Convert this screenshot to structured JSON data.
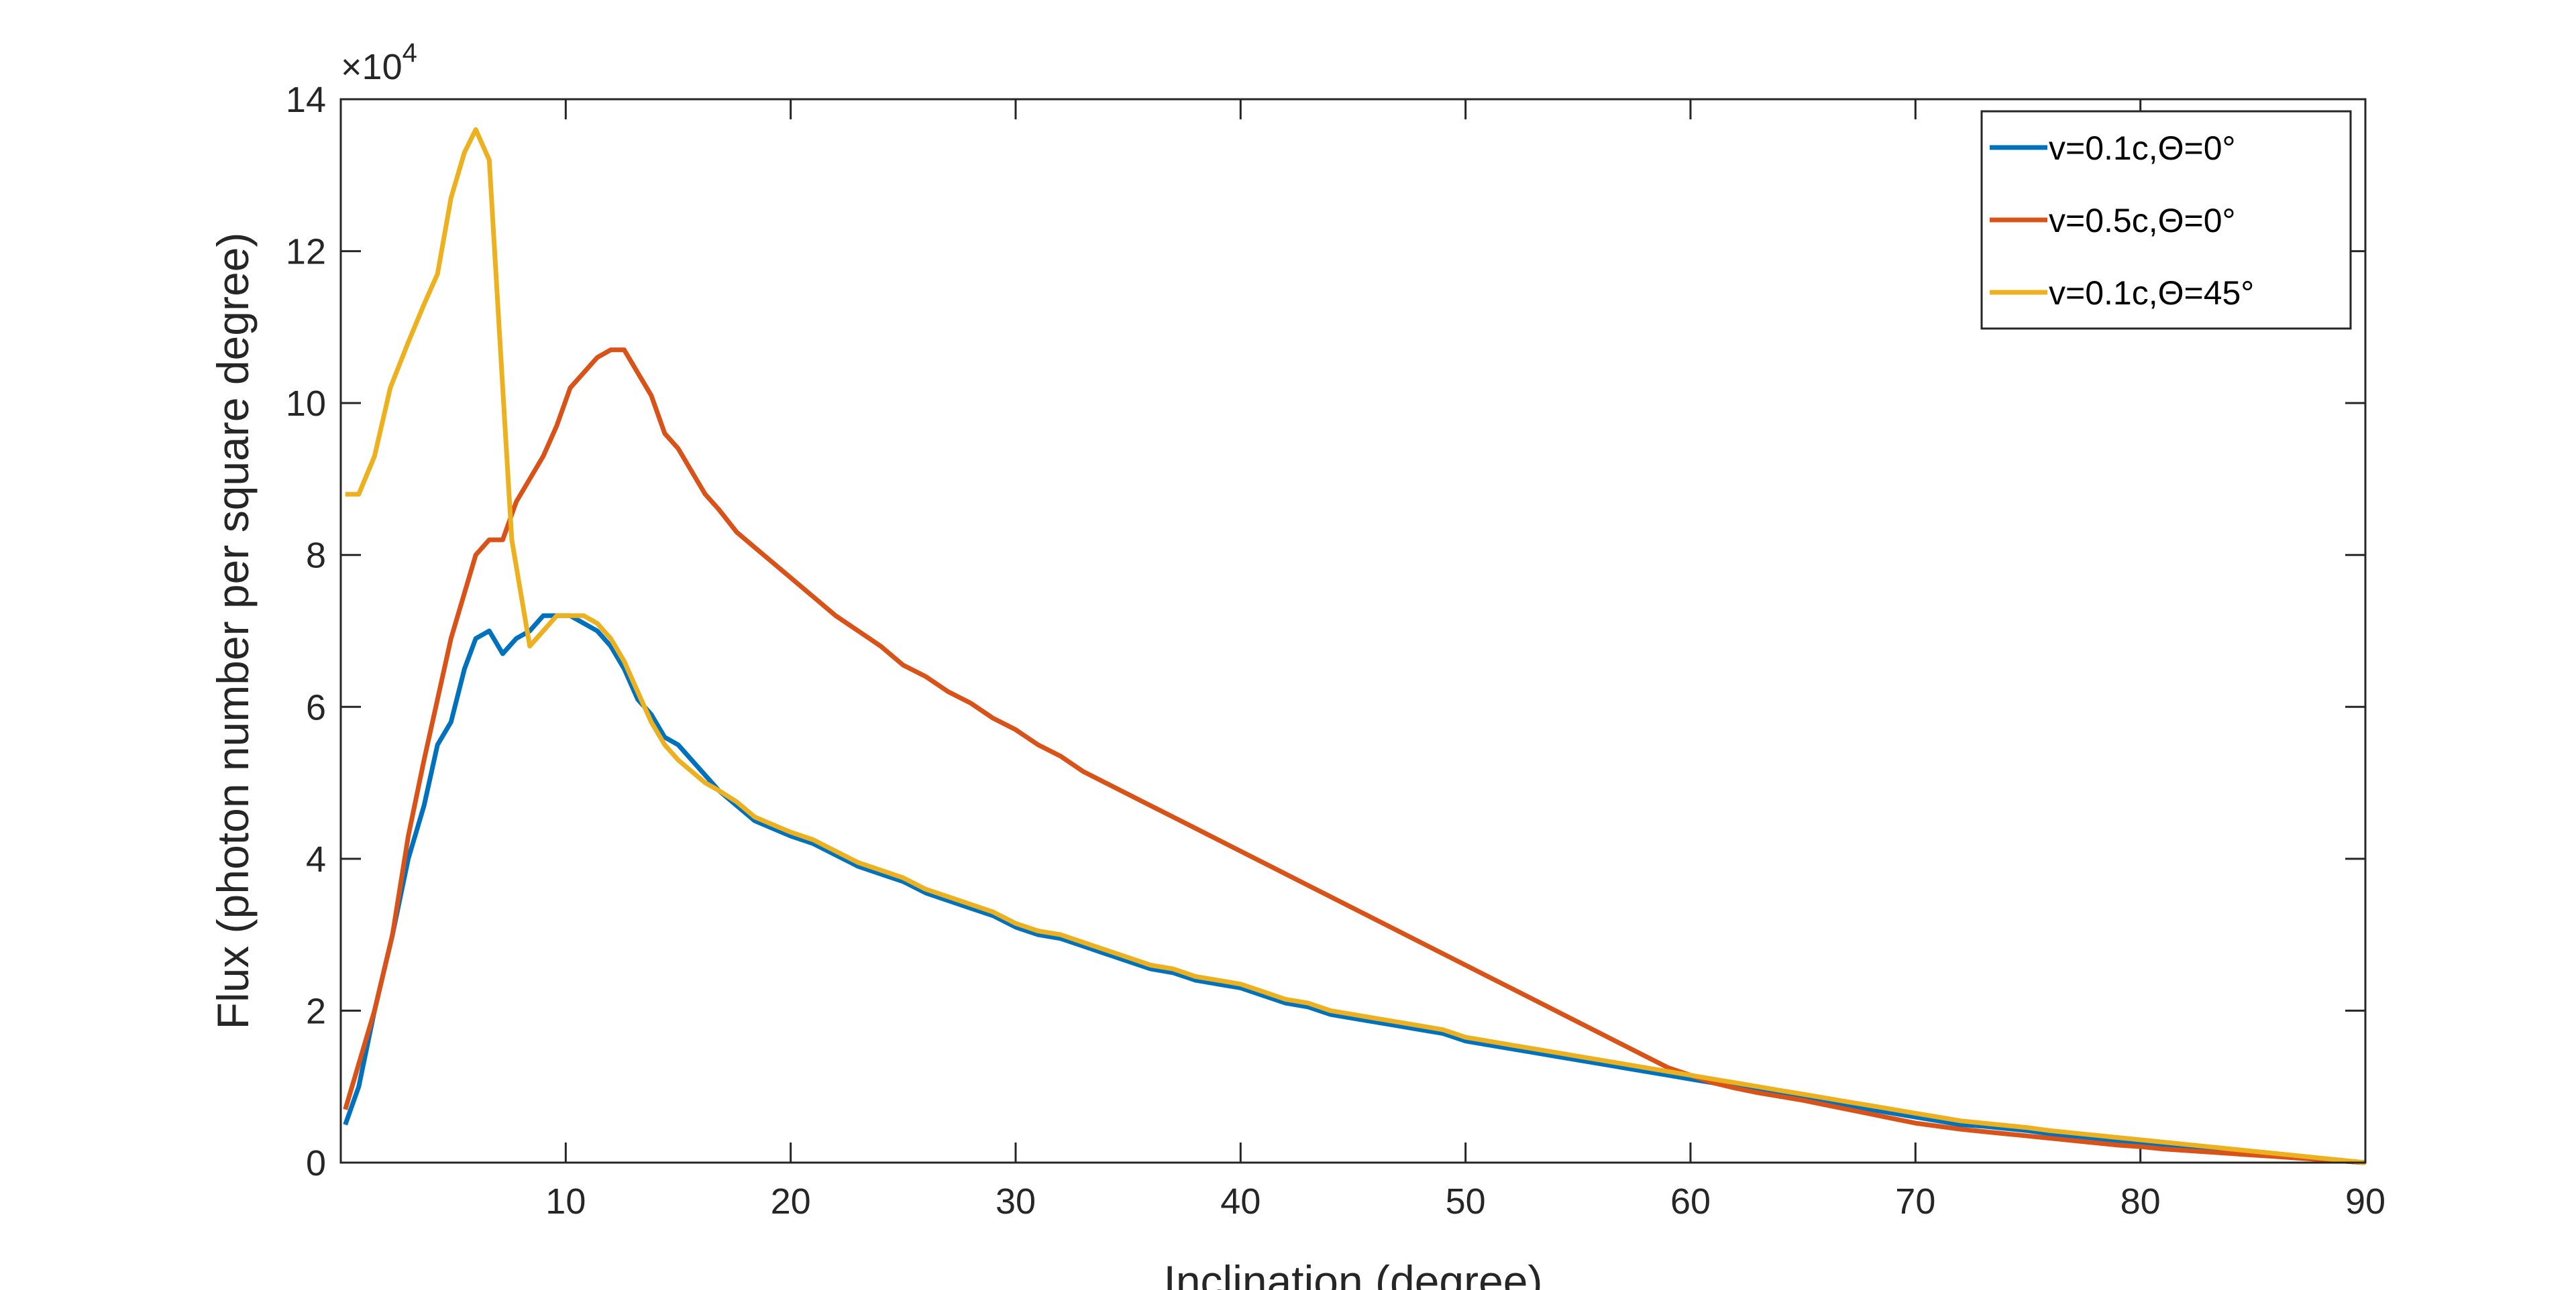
{
  "chart_data": {
    "type": "line",
    "title": "",
    "xlabel": "Inclination (degree)",
    "ylabel": "Flux (photon number per square degree)",
    "y_exponent_label": "×10",
    "y_exponent_power": "4",
    "xlim": [
      0,
      90
    ],
    "ylim": [
      0,
      14
    ],
    "x_ticks": [
      10,
      20,
      30,
      40,
      50,
      60,
      70,
      80,
      90
    ],
    "y_ticks": [
      0,
      2,
      4,
      6,
      8,
      10,
      12,
      14
    ],
    "grid": false,
    "legend_position": "top-right",
    "series": [
      {
        "name": "v=0.1c,Θ=0°",
        "color": "#0072BD",
        "points": [
          [
            0.2,
            0.5
          ],
          [
            0.8,
            1.0
          ],
          [
            1.5,
            2.0
          ],
          [
            2.3,
            3.0
          ],
          [
            3.0,
            4.0
          ],
          [
            3.7,
            4.7
          ],
          [
            4.3,
            5.5
          ],
          [
            4.9,
            5.8
          ],
          [
            5.5,
            6.5
          ],
          [
            6.0,
            6.9
          ],
          [
            6.6,
            7.0
          ],
          [
            7.2,
            6.7
          ],
          [
            7.8,
            6.9
          ],
          [
            8.4,
            7.0
          ],
          [
            9.0,
            7.2
          ],
          [
            9.6,
            7.2
          ],
          [
            10.2,
            7.2
          ],
          [
            10.8,
            7.1
          ],
          [
            11.4,
            7.0
          ],
          [
            12.0,
            6.8
          ],
          [
            12.6,
            6.5
          ],
          [
            13.2,
            6.1
          ],
          [
            13.8,
            5.9
          ],
          [
            14.4,
            5.6
          ],
          [
            15.0,
            5.5
          ],
          [
            15.6,
            5.3
          ],
          [
            16.2,
            5.1
          ],
          [
            16.8,
            4.9
          ],
          [
            17.6,
            4.7
          ],
          [
            18.4,
            4.5
          ],
          [
            19.2,
            4.4
          ],
          [
            20.0,
            4.3
          ],
          [
            21.0,
            4.2
          ],
          [
            22.0,
            4.05
          ],
          [
            23.0,
            3.9
          ],
          [
            24.0,
            3.8
          ],
          [
            25.0,
            3.7
          ],
          [
            26.0,
            3.55
          ],
          [
            27.0,
            3.45
          ],
          [
            28.0,
            3.35
          ],
          [
            29.0,
            3.25
          ],
          [
            30.0,
            3.1
          ],
          [
            31.0,
            3.0
          ],
          [
            32.0,
            2.95
          ],
          [
            33.0,
            2.85
          ],
          [
            34.0,
            2.75
          ],
          [
            35.0,
            2.65
          ],
          [
            36.0,
            2.55
          ],
          [
            37.0,
            2.5
          ],
          [
            38.0,
            2.4
          ],
          [
            39.0,
            2.35
          ],
          [
            40.0,
            2.3
          ],
          [
            41.0,
            2.2
          ],
          [
            42.0,
            2.1
          ],
          [
            43.0,
            2.05
          ],
          [
            44.0,
            1.95
          ],
          [
            45.0,
            1.9
          ],
          [
            46.0,
            1.85
          ],
          [
            47.0,
            1.8
          ],
          [
            48.0,
            1.75
          ],
          [
            49.0,
            1.7
          ],
          [
            50.0,
            1.6
          ],
          [
            51.0,
            1.55
          ],
          [
            52.0,
            1.5
          ],
          [
            53.0,
            1.45
          ],
          [
            54.0,
            1.4
          ],
          [
            55.0,
            1.35
          ],
          [
            56.0,
            1.3
          ],
          [
            57.0,
            1.25
          ],
          [
            58.0,
            1.2
          ],
          [
            59.0,
            1.15
          ],
          [
            60.0,
            1.1
          ],
          [
            61.0,
            1.05
          ],
          [
            62.0,
            1.0
          ],
          [
            63.0,
            0.95
          ],
          [
            64.0,
            0.9
          ],
          [
            65.0,
            0.85
          ],
          [
            66.0,
            0.8
          ],
          [
            67.0,
            0.75
          ],
          [
            68.0,
            0.7
          ],
          [
            69.0,
            0.65
          ],
          [
            70.0,
            0.6
          ],
          [
            71.0,
            0.55
          ],
          [
            72.0,
            0.5
          ],
          [
            73.0,
            0.48
          ],
          [
            74.0,
            0.45
          ],
          [
            75.0,
            0.42
          ],
          [
            76.0,
            0.38
          ],
          [
            77.0,
            0.35
          ],
          [
            78.0,
            0.32
          ],
          [
            79.0,
            0.29
          ],
          [
            80.0,
            0.26
          ],
          [
            81.0,
            0.23
          ],
          [
            82.0,
            0.2
          ],
          [
            83.0,
            0.17
          ],
          [
            84.0,
            0.15
          ],
          [
            85.0,
            0.12
          ],
          [
            86.0,
            0.09
          ],
          [
            87.0,
            0.07
          ],
          [
            88.0,
            0.05
          ],
          [
            89.0,
            0.02
          ],
          [
            90.0,
            0.0
          ]
        ]
      },
      {
        "name": "v=0.5c,Θ=0°",
        "color": "#D95319",
        "points": [
          [
            0.2,
            0.7
          ],
          [
            0.8,
            1.3
          ],
          [
            1.5,
            2.0
          ],
          [
            2.3,
            3.0
          ],
          [
            3.0,
            4.3
          ],
          [
            3.7,
            5.3
          ],
          [
            4.3,
            6.1
          ],
          [
            4.9,
            6.9
          ],
          [
            5.5,
            7.5
          ],
          [
            6.0,
            8.0
          ],
          [
            6.6,
            8.2
          ],
          [
            7.2,
            8.2
          ],
          [
            7.8,
            8.7
          ],
          [
            8.4,
            9.0
          ],
          [
            9.0,
            9.3
          ],
          [
            9.6,
            9.7
          ],
          [
            10.2,
            10.2
          ],
          [
            10.8,
            10.4
          ],
          [
            11.4,
            10.6
          ],
          [
            12.0,
            10.7
          ],
          [
            12.6,
            10.7
          ],
          [
            13.2,
            10.4
          ],
          [
            13.8,
            10.1
          ],
          [
            14.4,
            9.6
          ],
          [
            15.0,
            9.4
          ],
          [
            15.6,
            9.1
          ],
          [
            16.2,
            8.8
          ],
          [
            16.8,
            8.6
          ],
          [
            17.6,
            8.3
          ],
          [
            18.4,
            8.1
          ],
          [
            19.2,
            7.9
          ],
          [
            20.0,
            7.7
          ],
          [
            21.0,
            7.45
          ],
          [
            22.0,
            7.2
          ],
          [
            23.0,
            7.0
          ],
          [
            24.0,
            6.8
          ],
          [
            25.0,
            6.55
          ],
          [
            26.0,
            6.4
          ],
          [
            27.0,
            6.2
          ],
          [
            28.0,
            6.05
          ],
          [
            29.0,
            5.85
          ],
          [
            30.0,
            5.7
          ],
          [
            31.0,
            5.5
          ],
          [
            32.0,
            5.35
          ],
          [
            33.0,
            5.15
          ],
          [
            34.0,
            5.0
          ],
          [
            35.0,
            4.85
          ],
          [
            36.0,
            4.7
          ],
          [
            37.0,
            4.55
          ],
          [
            38.0,
            4.4
          ],
          [
            39.0,
            4.25
          ],
          [
            40.0,
            4.1
          ],
          [
            41.0,
            3.95
          ],
          [
            42.0,
            3.8
          ],
          [
            43.0,
            3.65
          ],
          [
            44.0,
            3.5
          ],
          [
            45.0,
            3.35
          ],
          [
            46.0,
            3.2
          ],
          [
            47.0,
            3.05
          ],
          [
            48.0,
            2.9
          ],
          [
            49.0,
            2.75
          ],
          [
            50.0,
            2.6
          ],
          [
            51.0,
            2.45
          ],
          [
            52.0,
            2.3
          ],
          [
            53.0,
            2.15
          ],
          [
            54.0,
            2.0
          ],
          [
            55.0,
            1.85
          ],
          [
            56.0,
            1.7
          ],
          [
            57.0,
            1.55
          ],
          [
            58.0,
            1.4
          ],
          [
            59.0,
            1.25
          ],
          [
            60.0,
            1.15
          ],
          [
            61.0,
            1.05
          ],
          [
            62.0,
            0.98
          ],
          [
            63.0,
            0.92
          ],
          [
            64.0,
            0.87
          ],
          [
            65.0,
            0.82
          ],
          [
            66.0,
            0.76
          ],
          [
            67.0,
            0.7
          ],
          [
            68.0,
            0.64
          ],
          [
            69.0,
            0.58
          ],
          [
            70.0,
            0.52
          ],
          [
            71.0,
            0.48
          ],
          [
            72.0,
            0.44
          ],
          [
            73.0,
            0.41
          ],
          [
            74.0,
            0.38
          ],
          [
            75.0,
            0.35
          ],
          [
            76.0,
            0.32
          ],
          [
            77.0,
            0.29
          ],
          [
            78.0,
            0.26
          ],
          [
            79.0,
            0.23
          ],
          [
            80.0,
            0.21
          ],
          [
            81.0,
            0.18
          ],
          [
            82.0,
            0.16
          ],
          [
            83.0,
            0.14
          ],
          [
            84.0,
            0.12
          ],
          [
            85.0,
            0.1
          ],
          [
            86.0,
            0.08
          ],
          [
            87.0,
            0.06
          ],
          [
            88.0,
            0.04
          ],
          [
            89.0,
            0.02
          ],
          [
            90.0,
            0.0
          ]
        ]
      },
      {
        "name": "v=0.1c,Θ=45°",
        "color": "#EDB120",
        "points": [
          [
            0.2,
            8.8
          ],
          [
            0.8,
            8.8
          ],
          [
            1.5,
            9.3
          ],
          [
            2.2,
            10.2
          ],
          [
            3.0,
            10.8
          ],
          [
            3.7,
            11.3
          ],
          [
            4.3,
            11.7
          ],
          [
            4.9,
            12.7
          ],
          [
            5.5,
            13.3
          ],
          [
            6.0,
            13.6
          ],
          [
            6.6,
            13.2
          ],
          [
            7.2,
            10.2
          ],
          [
            7.6,
            8.2
          ],
          [
            8.0,
            7.5
          ],
          [
            8.4,
            6.8
          ],
          [
            9.0,
            7.0
          ],
          [
            9.6,
            7.2
          ],
          [
            10.2,
            7.2
          ],
          [
            10.8,
            7.2
          ],
          [
            11.4,
            7.1
          ],
          [
            12.0,
            6.9
          ],
          [
            12.6,
            6.6
          ],
          [
            13.2,
            6.2
          ],
          [
            13.8,
            5.8
          ],
          [
            14.4,
            5.5
          ],
          [
            15.0,
            5.3
          ],
          [
            15.6,
            5.15
          ],
          [
            16.2,
            5.0
          ],
          [
            16.8,
            4.9
          ],
          [
            17.6,
            4.75
          ],
          [
            18.4,
            4.55
          ],
          [
            19.2,
            4.45
          ],
          [
            20.0,
            4.35
          ],
          [
            21.0,
            4.25
          ],
          [
            22.0,
            4.1
          ],
          [
            23.0,
            3.95
          ],
          [
            24.0,
            3.85
          ],
          [
            25.0,
            3.75
          ],
          [
            26.0,
            3.6
          ],
          [
            27.0,
            3.5
          ],
          [
            28.0,
            3.4
          ],
          [
            29.0,
            3.3
          ],
          [
            30.0,
            3.15
          ],
          [
            31.0,
            3.05
          ],
          [
            32.0,
            3.0
          ],
          [
            33.0,
            2.9
          ],
          [
            34.0,
            2.8
          ],
          [
            35.0,
            2.7
          ],
          [
            36.0,
            2.6
          ],
          [
            37.0,
            2.55
          ],
          [
            38.0,
            2.45
          ],
          [
            39.0,
            2.4
          ],
          [
            40.0,
            2.35
          ],
          [
            41.0,
            2.25
          ],
          [
            42.0,
            2.15
          ],
          [
            43.0,
            2.1
          ],
          [
            44.0,
            2.0
          ],
          [
            45.0,
            1.95
          ],
          [
            46.0,
            1.9
          ],
          [
            47.0,
            1.85
          ],
          [
            48.0,
            1.8
          ],
          [
            49.0,
            1.75
          ],
          [
            50.0,
            1.65
          ],
          [
            51.0,
            1.6
          ],
          [
            52.0,
            1.55
          ],
          [
            53.0,
            1.5
          ],
          [
            54.0,
            1.45
          ],
          [
            55.0,
            1.4
          ],
          [
            56.0,
            1.35
          ],
          [
            57.0,
            1.3
          ],
          [
            58.0,
            1.25
          ],
          [
            59.0,
            1.2
          ],
          [
            60.0,
            1.15
          ],
          [
            61.0,
            1.1
          ],
          [
            62.0,
            1.05
          ],
          [
            63.0,
            1.0
          ],
          [
            64.0,
            0.95
          ],
          [
            65.0,
            0.9
          ],
          [
            66.0,
            0.85
          ],
          [
            67.0,
            0.8
          ],
          [
            68.0,
            0.75
          ],
          [
            69.0,
            0.7
          ],
          [
            70.0,
            0.65
          ],
          [
            71.0,
            0.6
          ],
          [
            72.0,
            0.55
          ],
          [
            73.0,
            0.52
          ],
          [
            74.0,
            0.49
          ],
          [
            75.0,
            0.46
          ],
          [
            76.0,
            0.42
          ],
          [
            77.0,
            0.39
          ],
          [
            78.0,
            0.36
          ],
          [
            79.0,
            0.33
          ],
          [
            80.0,
            0.3
          ],
          [
            81.0,
            0.27
          ],
          [
            82.0,
            0.24
          ],
          [
            83.0,
            0.21
          ],
          [
            84.0,
            0.18
          ],
          [
            85.0,
            0.15
          ],
          [
            86.0,
            0.12
          ],
          [
            87.0,
            0.09
          ],
          [
            88.0,
            0.06
          ],
          [
            89.0,
            0.03
          ],
          [
            90.0,
            0.0
          ]
        ]
      }
    ]
  }
}
